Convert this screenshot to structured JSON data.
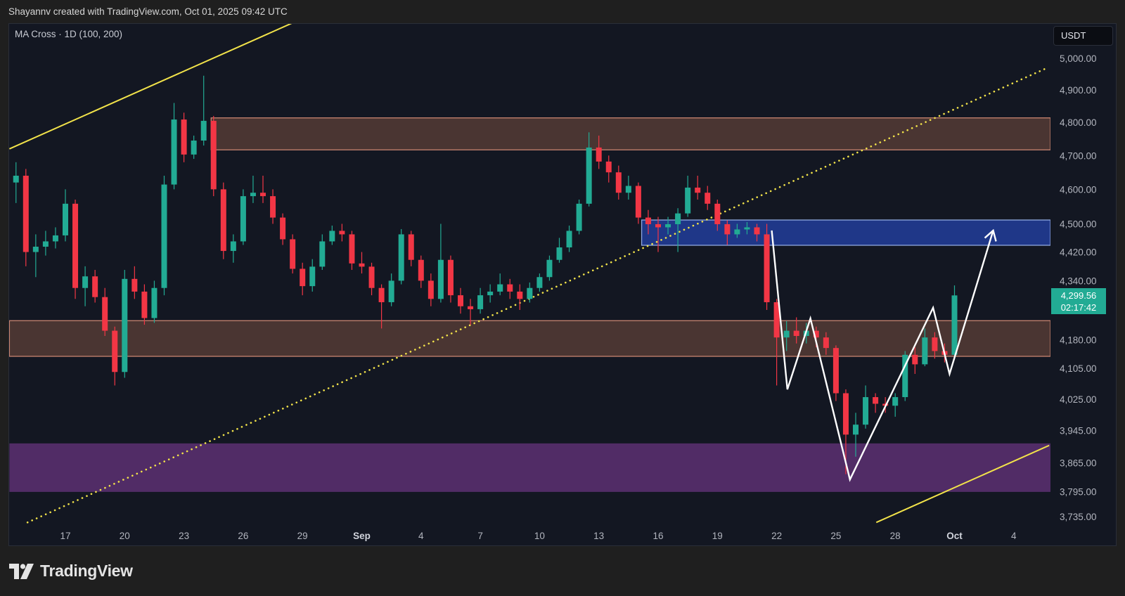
{
  "header": {
    "credit": "Shayannv created with TradingView.com, Oct 01, 2025 09:42 UTC"
  },
  "indicator": {
    "label": "MA Cross · 1D (100, 200)"
  },
  "currency": {
    "label": "USDT"
  },
  "last_price": {
    "price": "4,299.56",
    "countdown": "02:17:42"
  },
  "brand": {
    "name": "TradingView",
    "logo_icon": "tradingview-logo"
  },
  "colors": {
    "up": "#22ab94",
    "down": "#f23645",
    "background": "#131722",
    "zone_brown": "#4a3532",
    "zone_brown_border": "#c98470",
    "zone_blue": "#1f3788",
    "zone_blue_border": "#8fa8e0",
    "zone_purple": "#512c66",
    "trendline": "#f2e34a",
    "pattern": "#ffffff"
  },
  "chart_data": {
    "type": "candlestick",
    "y_scale": "log",
    "ylim": [
      3710,
      5130
    ],
    "y_ticks": [
      5000,
      4900,
      4800,
      4700,
      4600,
      4500,
      4420,
      4340,
      4180,
      4105,
      4025,
      3945,
      3865,
      3795,
      3735
    ],
    "y_tick_labels": [
      "5,000.00",
      "4,900.00",
      "4,800.00",
      "4,700.00",
      "4,600.00",
      "4,500.00",
      "4,420.00",
      "4,340.00",
      "4,180.00",
      "4,105.00",
      "4,025.00",
      "3,945.00",
      "3,865.00",
      "3,795.00",
      "3,735.00"
    ],
    "x_ticks": [
      {
        "label": "17",
        "date": "2025-08-17",
        "bold": false
      },
      {
        "label": "20",
        "date": "2025-08-20",
        "bold": false
      },
      {
        "label": "23",
        "date": "2025-08-23",
        "bold": false
      },
      {
        "label": "26",
        "date": "2025-08-26",
        "bold": false
      },
      {
        "label": "29",
        "date": "2025-08-29",
        "bold": false
      },
      {
        "label": "Sep",
        "date": "2025-09-01",
        "bold": true
      },
      {
        "label": "4",
        "date": "2025-09-04",
        "bold": false
      },
      {
        "label": "7",
        "date": "2025-09-07",
        "bold": false
      },
      {
        "label": "10",
        "date": "2025-09-10",
        "bold": false
      },
      {
        "label": "13",
        "date": "2025-09-13",
        "bold": false
      },
      {
        "label": "16",
        "date": "2025-09-16",
        "bold": false
      },
      {
        "label": "19",
        "date": "2025-09-19",
        "bold": false
      },
      {
        "label": "22",
        "date": "2025-09-22",
        "bold": false
      },
      {
        "label": "25",
        "date": "2025-09-25",
        "bold": false
      },
      {
        "label": "28",
        "date": "2025-09-28",
        "bold": false
      },
      {
        "label": "Oct",
        "date": "2025-10-01",
        "bold": true
      },
      {
        "label": "4",
        "date": "2025-10-04",
        "bold": false
      }
    ],
    "candles_ohlc": [
      [
        "2025-08-14T00",
        4780,
        4800,
        4600,
        4620
      ],
      [
        "2025-08-14T12",
        4620,
        4680,
        4560,
        4640
      ],
      [
        "2025-08-15T00",
        4640,
        4660,
        4380,
        4420
      ],
      [
        "2025-08-15T12",
        4420,
        4470,
        4350,
        4435
      ],
      [
        "2025-08-16T00",
        4435,
        4480,
        4410,
        4450
      ],
      [
        "2025-08-16T12",
        4450,
        4490,
        4430,
        4467
      ],
      [
        "2025-08-17T00",
        4467,
        4600,
        4450,
        4558
      ],
      [
        "2025-08-17T12",
        4558,
        4570,
        4290,
        4320
      ],
      [
        "2025-08-18T00",
        4320,
        4380,
        4270,
        4352
      ],
      [
        "2025-08-18T12",
        4352,
        4370,
        4280,
        4295
      ],
      [
        "2025-08-19T00",
        4295,
        4320,
        4190,
        4204
      ],
      [
        "2025-08-19T12",
        4204,
        4215,
        4060,
        4095
      ],
      [
        "2025-08-20T00",
        4095,
        4370,
        4080,
        4345
      ],
      [
        "2025-08-20T12",
        4345,
        4380,
        4290,
        4310
      ],
      [
        "2025-08-21T00",
        4310,
        4330,
        4220,
        4238
      ],
      [
        "2025-08-21T12",
        4238,
        4340,
        4225,
        4320
      ],
      [
        "2025-08-22T00",
        4320,
        4640,
        4300,
        4614
      ],
      [
        "2025-08-22T12",
        4614,
        4860,
        4600,
        4809
      ],
      [
        "2025-08-23T00",
        4809,
        4830,
        4680,
        4703
      ],
      [
        "2025-08-23T12",
        4703,
        4760,
        4690,
        4745
      ],
      [
        "2025-08-24T00",
        4745,
        4945,
        4730,
        4805
      ],
      [
        "2025-08-24T12",
        4805,
        4820,
        4580,
        4600
      ],
      [
        "2025-08-25T00",
        4600,
        4620,
        4400,
        4423
      ],
      [
        "2025-08-25T12",
        4423,
        4470,
        4390,
        4450
      ],
      [
        "2025-08-26T00",
        4450,
        4600,
        4440,
        4580
      ],
      [
        "2025-08-26T12",
        4580,
        4640,
        4560,
        4590
      ],
      [
        "2025-08-27T00",
        4590,
        4640,
        4560,
        4580
      ],
      [
        "2025-08-27T12",
        4580,
        4600,
        4500,
        4518
      ],
      [
        "2025-08-28T00",
        4518,
        4530,
        4440,
        4456
      ],
      [
        "2025-08-28T12",
        4456,
        4470,
        4360,
        4373
      ],
      [
        "2025-08-29T00",
        4373,
        4390,
        4300,
        4325
      ],
      [
        "2025-08-29T12",
        4325,
        4400,
        4310,
        4379
      ],
      [
        "2025-08-30T00",
        4379,
        4470,
        4370,
        4450
      ],
      [
        "2025-08-30T12",
        4450,
        4495,
        4440,
        4480
      ],
      [
        "2025-08-31T00",
        4480,
        4500,
        4450,
        4470
      ],
      [
        "2025-08-31T12",
        4470,
        4480,
        4370,
        4388
      ],
      [
        "2025-09-01T00",
        4388,
        4420,
        4360,
        4379
      ],
      [
        "2025-09-01T12",
        4379,
        4390,
        4300,
        4320
      ],
      [
        "2025-09-02T00",
        4320,
        4330,
        4210,
        4281
      ],
      [
        "2025-09-02T12",
        4281,
        4360,
        4270,
        4340
      ],
      [
        "2025-09-03T00",
        4340,
        4485,
        4330,
        4470
      ],
      [
        "2025-09-03T12",
        4470,
        4480,
        4380,
        4398
      ],
      [
        "2025-09-04T00",
        4398,
        4410,
        4320,
        4340
      ],
      [
        "2025-09-04T12",
        4340,
        4360,
        4270,
        4290
      ],
      [
        "2025-09-05T00",
        4290,
        4500,
        4280,
        4398
      ],
      [
        "2025-09-05T12",
        4398,
        4410,
        4280,
        4300
      ],
      [
        "2025-09-06T00",
        4300,
        4320,
        4250,
        4270
      ],
      [
        "2025-09-06T12",
        4270,
        4290,
        4220,
        4262
      ],
      [
        "2025-09-07T00",
        4262,
        4320,
        4250,
        4300
      ],
      [
        "2025-09-07T12",
        4300,
        4330,
        4280,
        4310
      ],
      [
        "2025-09-08T00",
        4310,
        4360,
        4300,
        4330
      ],
      [
        "2025-09-08T12",
        4330,
        4345,
        4290,
        4310
      ],
      [
        "2025-09-09T00",
        4310,
        4330,
        4260,
        4290
      ],
      [
        "2025-09-09T12",
        4290,
        4335,
        4280,
        4320
      ],
      [
        "2025-09-10T00",
        4320,
        4360,
        4310,
        4350
      ],
      [
        "2025-09-10T12",
        4350,
        4410,
        4340,
        4398
      ],
      [
        "2025-09-11T00",
        4398,
        4460,
        4390,
        4433
      ],
      [
        "2025-09-11T12",
        4433,
        4495,
        4420,
        4480
      ],
      [
        "2025-09-12T00",
        4480,
        4570,
        4470,
        4558
      ],
      [
        "2025-09-12T12",
        4558,
        4770,
        4550,
        4724
      ],
      [
        "2025-09-13T00",
        4724,
        4760,
        4660,
        4682
      ],
      [
        "2025-09-13T12",
        4682,
        4700,
        4620,
        4650
      ],
      [
        "2025-09-14T00",
        4650,
        4670,
        4570,
        4590
      ],
      [
        "2025-09-14T12",
        4590,
        4640,
        4570,
        4610
      ],
      [
        "2025-09-15T00",
        4610,
        4620,
        4500,
        4518
      ],
      [
        "2025-09-15T12",
        4518,
        4540,
        4470,
        4499
      ],
      [
        "2025-09-16T00",
        4499,
        4520,
        4420,
        4490
      ],
      [
        "2025-09-16T12",
        4490,
        4520,
        4470,
        4499
      ],
      [
        "2025-09-17T00",
        4499,
        4545,
        4420,
        4530
      ],
      [
        "2025-09-17T12",
        4530,
        4640,
        4520,
        4605
      ],
      [
        "2025-09-18T00",
        4605,
        4640,
        4570,
        4590
      ],
      [
        "2025-09-18T12",
        4590,
        4610,
        4540,
        4558
      ],
      [
        "2025-09-19T00",
        4558,
        4570,
        4480,
        4499
      ],
      [
        "2025-09-19T12",
        4499,
        4510,
        4440,
        4470
      ],
      [
        "2025-09-20T00",
        4470,
        4500,
        4460,
        4484
      ],
      [
        "2025-09-20T12",
        4484,
        4505,
        4470,
        4490
      ],
      [
        "2025-09-21T00",
        4490,
        4500,
        4450,
        4470
      ],
      [
        "2025-09-21T12",
        4470,
        4500,
        4260,
        4281
      ],
      [
        "2025-09-22T00",
        4281,
        4290,
        4060,
        4186
      ],
      [
        "2025-09-22T12",
        4186,
        4230,
        4150,
        4204
      ],
      [
        "2025-09-23T00",
        4204,
        4240,
        4170,
        4190
      ],
      [
        "2025-09-23T12",
        4190,
        4225,
        4170,
        4204
      ],
      [
        "2025-09-24T00",
        4204,
        4215,
        4160,
        4186
      ],
      [
        "2025-09-24T12",
        4186,
        4200,
        4140,
        4158
      ],
      [
        "2025-09-25T00",
        4158,
        4165,
        4020,
        4040
      ],
      [
        "2025-09-25T12",
        4040,
        4050,
        3837,
        3935
      ],
      [
        "2025-09-26T00",
        3935,
        3990,
        3880,
        3960
      ],
      [
        "2025-09-26T12",
        3960,
        4060,
        3950,
        4030
      ],
      [
        "2025-09-27T00",
        4030,
        4040,
        3990,
        4013
      ],
      [
        "2025-09-27T12",
        4013,
        4030,
        3990,
        4008
      ],
      [
        "2025-09-28T00",
        4008,
        4040,
        3980,
        4030
      ],
      [
        "2025-09-28T12",
        4030,
        4150,
        4020,
        4140
      ],
      [
        "2025-09-29T00",
        4140,
        4160,
        4090,
        4115
      ],
      [
        "2025-09-29T12",
        4115,
        4210,
        4110,
        4186
      ],
      [
        "2025-09-30T00",
        4186,
        4200,
        4130,
        4150
      ],
      [
        "2025-09-30T12",
        4150,
        4170,
        4120,
        4140
      ],
      [
        "2025-10-01T00",
        4140,
        4327,
        4130,
        4299.56
      ]
    ],
    "zones": [
      {
        "name": "supply-zone-upper",
        "kind": "brown",
        "from": "2025-08-24T09",
        "low": 4717,
        "high": 4814
      },
      {
        "name": "demand-zone-blue",
        "kind": "blue",
        "from": "2025-09-15T04",
        "low": 4439,
        "high": 4511
      },
      {
        "name": "support-zone-middle",
        "kind": "brown",
        "from": "2025-08-14T04",
        "low": 4136,
        "high": 4231
      },
      {
        "name": "support-zone-purple",
        "kind": "purple",
        "from": "2025-08-14T04",
        "low": 3794,
        "high": 3913
      }
    ],
    "trendlines": [
      {
        "name": "upper-channel-line",
        "style": "solid",
        "p1": [
          "2025-08-14T04",
          4720
        ],
        "p2": [
          "2025-08-28T11",
          5113
        ]
      },
      {
        "name": "dotted-trendline",
        "style": "dotted",
        "p1": [
          "2025-08-15T02",
          3721
        ],
        "p2": [
          "2025-10-05T16",
          4969
        ]
      },
      {
        "name": "lower-channel-line",
        "style": "solid",
        "p1": [
          "2025-09-27T01",
          3721
        ],
        "p2": [
          "2025-10-05T19",
          3908
        ]
      }
    ],
    "pattern_path": [
      [
        "2025-09-21T18",
        4481
      ],
      [
        "2025-09-22T13",
        4050
      ],
      [
        "2025-09-23T17",
        4237
      ],
      [
        "2025-09-25T17",
        3824
      ],
      [
        "2025-09-29T22",
        4266
      ],
      [
        "2025-09-30T18",
        4090
      ],
      [
        "2025-10-02T23",
        4481
      ]
    ]
  }
}
